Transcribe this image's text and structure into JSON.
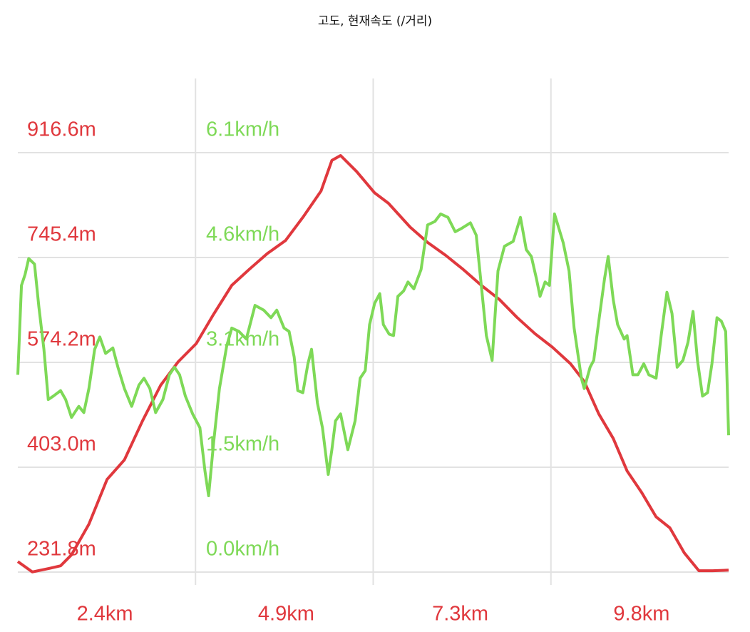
{
  "chart_data": {
    "type": "line",
    "title": "고도, 현재속도 (/거리)",
    "grid": true,
    "xlim": [
      1.2,
      11.0
    ],
    "xticks": [
      {
        "value": 2.4,
        "label": "2.4km"
      },
      {
        "value": 4.9,
        "label": "4.9km"
      },
      {
        "value": 7.3,
        "label": "7.3km"
      },
      {
        "value": 9.8,
        "label": "9.8km"
      }
    ],
    "ylim": [
      231.8,
      1037.8
    ],
    "yticks": [
      {
        "value": 231.8,
        "label": "231.8m"
      },
      {
        "value": 403.0,
        "label": "403.0m"
      },
      {
        "value": 574.2,
        "label": "574.2m"
      },
      {
        "value": 745.4,
        "label": "745.4m"
      },
      {
        "value": 916.6,
        "label": "916.6m"
      }
    ],
    "y2lim": [
      0,
      7.18
    ],
    "y2ticks": [
      {
        "value": 0,
        "label": "0.0km/h"
      },
      {
        "value": 1.525,
        "label": "1.5km/h"
      },
      {
        "value": 3.05,
        "label": "3.1km/h"
      },
      {
        "value": 4.575,
        "label": "4.6km/h"
      },
      {
        "value": 6.1,
        "label": "6.1km/h"
      }
    ],
    "y_color": "#e0383d",
    "y2_color": "#7ed957",
    "series": [
      {
        "color": "#e0383d",
        "axis": "y",
        "x": [
          1.2,
          1.4,
          1.64,
          1.79,
          1.94,
          2.18,
          2.43,
          2.67,
          2.92,
          3.17,
          3.41,
          3.66,
          3.9,
          4.15,
          4.39,
          4.64,
          4.89,
          5.13,
          5.38,
          5.53,
          5.65,
          5.87,
          6.12,
          6.31,
          6.61,
          6.85,
          7.1,
          7.34,
          7.59,
          7.84,
          8.08,
          8.33,
          8.57,
          8.82,
          9.01,
          9.21,
          9.41,
          9.6,
          9.8,
          10.0,
          10.19,
          10.39,
          10.59,
          10.78,
          11.0
        ],
        "values": [
          249,
          232,
          238,
          242,
          260,
          310,
          383,
          415,
          479,
          537,
          575,
          605,
          653,
          700,
          726,
          752,
          773,
          811,
          854,
          904,
          912,
          886,
          851,
          834,
          795,
          770,
          749,
          726,
          700,
          677,
          648,
          621,
          599,
          572,
          543,
          490,
          450,
          397,
          362,
          322,
          304,
          263,
          234,
          234,
          235
        ]
      },
      {
        "color": "#7ed957",
        "axis": "y2",
        "x": [
          1.2,
          1.25,
          1.3,
          1.35,
          1.43,
          1.49,
          1.56,
          1.62,
          1.69,
          1.79,
          1.86,
          1.94,
          2.04,
          2.11,
          2.18,
          2.26,
          2.33,
          2.41,
          2.51,
          2.58,
          2.67,
          2.77,
          2.87,
          2.94,
          3.02,
          3.1,
          3.2,
          3.29,
          3.36,
          3.43,
          3.51,
          3.61,
          3.71,
          3.78,
          3.83,
          3.9,
          3.98,
          4.08,
          4.15,
          4.25,
          4.35,
          4.47,
          4.59,
          4.69,
          4.77,
          4.87,
          4.94,
          5.01,
          5.06,
          5.13,
          5.2,
          5.25,
          5.33,
          5.4,
          5.48,
          5.53,
          5.58,
          5.65,
          5.75,
          5.85,
          5.92,
          5.99,
          6.05,
          6.12,
          6.19,
          6.24,
          6.32,
          6.38,
          6.44,
          6.52,
          6.58,
          6.66,
          6.76,
          6.85,
          6.95,
          7.03,
          7.13,
          7.23,
          7.32,
          7.44,
          7.52,
          7.59,
          7.66,
          7.74,
          7.82,
          7.91,
          8.03,
          8.13,
          8.21,
          8.28,
          8.35,
          8.4,
          8.47,
          8.53,
          8.6,
          8.72,
          8.8,
          8.87,
          8.97,
          9.01,
          9.09,
          9.14,
          9.21,
          9.29,
          9.34,
          9.41,
          9.47,
          9.56,
          9.6,
          9.68,
          9.75,
          9.83,
          9.9,
          10.0,
          10.07,
          10.15,
          10.22,
          10.29,
          10.37,
          10.44,
          10.51,
          10.57,
          10.64,
          10.71,
          10.77,
          10.84,
          10.9,
          10.96,
          11.0
        ],
        "values": [
          2.87,
          4.17,
          4.33,
          4.56,
          4.48,
          3.86,
          3.24,
          2.51,
          2.56,
          2.64,
          2.51,
          2.25,
          2.41,
          2.32,
          2.67,
          3.24,
          3.42,
          3.18,
          3.26,
          2.98,
          2.67,
          2.41,
          2.72,
          2.82,
          2.67,
          2.32,
          2.51,
          2.87,
          2.98,
          2.87,
          2.56,
          2.3,
          2.1,
          1.47,
          1.11,
          1.89,
          2.67,
          3.29,
          3.55,
          3.5,
          3.39,
          3.88,
          3.81,
          3.7,
          3.81,
          3.55,
          3.5,
          3.13,
          2.64,
          2.61,
          3.03,
          3.24,
          2.46,
          2.1,
          1.42,
          1.78,
          2.2,
          2.3,
          1.78,
          2.2,
          2.82,
          2.93,
          3.6,
          3.91,
          4.05,
          3.6,
          3.46,
          3.44,
          4.01,
          4.09,
          4.22,
          4.12,
          4.4,
          5.05,
          5.1,
          5.21,
          5.16,
          4.95,
          5.0,
          5.08,
          4.9,
          4.17,
          3.44,
          3.08,
          4.38,
          4.74,
          4.81,
          5.16,
          4.69,
          4.59,
          4.27,
          4.01,
          4.22,
          4.17,
          5.21,
          4.79,
          4.38,
          3.55,
          2.82,
          2.67,
          2.98,
          3.08,
          3.65,
          4.27,
          4.59,
          3.96,
          3.6,
          3.39,
          3.44,
          2.87,
          2.87,
          3.03,
          2.87,
          2.82,
          3.44,
          4.07,
          3.76,
          2.98,
          3.08,
          3.34,
          3.79,
          3.08,
          2.56,
          2.61,
          3.03,
          3.7,
          3.65,
          3.5,
          1.99
        ]
      }
    ]
  }
}
